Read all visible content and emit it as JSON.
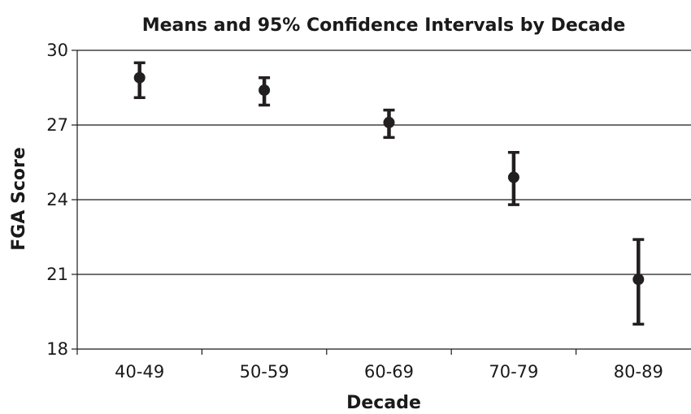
{
  "chart_data": {
    "type": "scatter",
    "error_bars": true,
    "title": "Means and 95% Confidence Intervals by Decade",
    "xlabel": "Decade",
    "ylabel": "FGA Score",
    "categories": [
      "40-49",
      "50-59",
      "60-69",
      "70-79",
      "80-89"
    ],
    "series": [
      {
        "means": [
          28.9,
          28.4,
          27.1,
          24.9,
          20.8
        ],
        "ci_lower": [
          28.1,
          27.8,
          26.5,
          23.8,
          19.0
        ],
        "ci_upper": [
          29.5,
          28.9,
          27.6,
          25.9,
          22.4
        ]
      }
    ],
    "ylim": [
      18,
      30
    ],
    "yticks": [
      18,
      21,
      24,
      27,
      30
    ],
    "grid": "horizontal",
    "legend": "none",
    "colors": {
      "marker": "#231f20",
      "gridline": "#1a1a1a",
      "axis": "#1a1a1a"
    }
  }
}
